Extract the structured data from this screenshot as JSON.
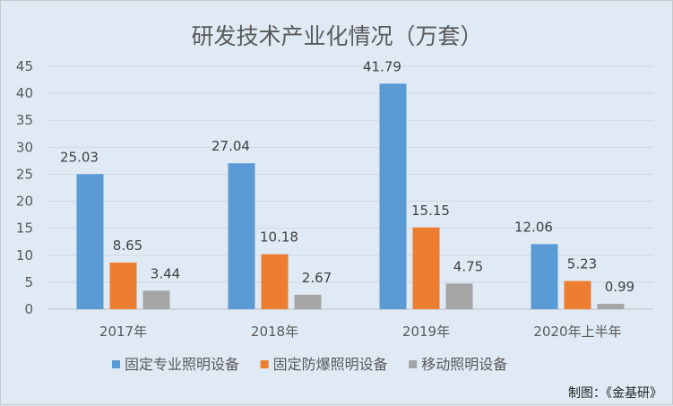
{
  "chart_data": {
    "type": "bar",
    "title": "研发技术产业化情况（万套）",
    "categories": [
      "2017年",
      "2018年",
      "2019年",
      "2020年上半年"
    ],
    "series": [
      {
        "name": "固定专业照明设备",
        "color": "#5b9bd5",
        "values": [
          25.03,
          27.04,
          41.79,
          12.06
        ]
      },
      {
        "name": "固定防爆照明设备",
        "color": "#ed7d31",
        "values": [
          8.65,
          10.18,
          15.15,
          5.23
        ]
      },
      {
        "name": "移动照明设备",
        "color": "#a5a5a5",
        "values": [
          3.44,
          2.67,
          4.75,
          0.99
        ]
      }
    ],
    "ylim": [
      0,
      45
    ],
    "yticks": [
      0,
      5,
      10,
      15,
      20,
      25,
      30,
      35,
      40,
      45
    ],
    "xlabel": "",
    "ylabel": "",
    "grid": true,
    "legend": "bottom"
  },
  "credit": "制图：《金基研》"
}
